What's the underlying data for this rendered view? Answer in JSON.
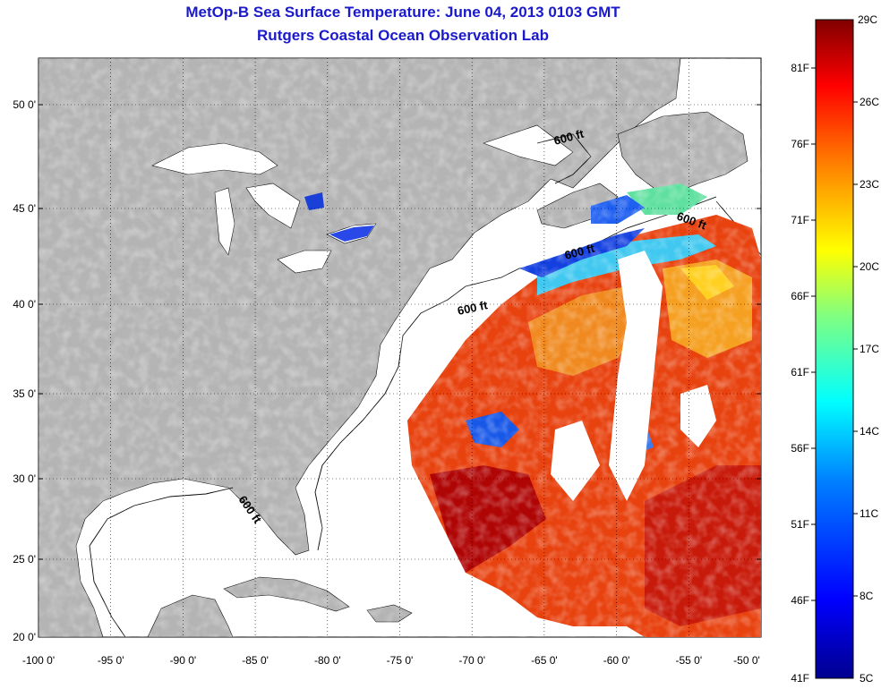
{
  "title": "MetOp-B Sea Surface Temperature:  June 04, 2013 0103 GMT",
  "subtitle": "Rutgers Coastal Ocean Observation Lab",
  "axes": {
    "lon_ticks": [
      "-100 0'",
      "-95 0'",
      "-90 0'",
      "-85 0'",
      "-80 0'",
      "-75 0'",
      "-70 0'",
      "-65 0'",
      "-60 0'",
      "-55 0'",
      "-50 0'"
    ],
    "lat_ticks": [
      "50 0'",
      "45 0'",
      "40 0'",
      "35 0'",
      "30 0'",
      "25 0'",
      "20 0'"
    ]
  },
  "contour_labels": [
    "600 ft",
    "600 ft",
    "600 ft",
    "600 ft",
    "600 ft"
  ],
  "colorbar": {
    "fahrenheit": [
      "81F",
      "76F",
      "71F",
      "66F",
      "61F",
      "56F",
      "51F",
      "46F",
      "41F"
    ],
    "celsius": [
      "29C",
      "26C",
      "23C",
      "20C",
      "17C",
      "14C",
      "11C",
      "8C",
      "5C"
    ]
  },
  "colors": {
    "land": "#b4b4b4",
    "title": "#1a1acc",
    "sst_warm": "#e03010",
    "sst_hot": "#a00000",
    "sst_mid": "#f08020",
    "sst_cool": "#1040e0"
  }
}
